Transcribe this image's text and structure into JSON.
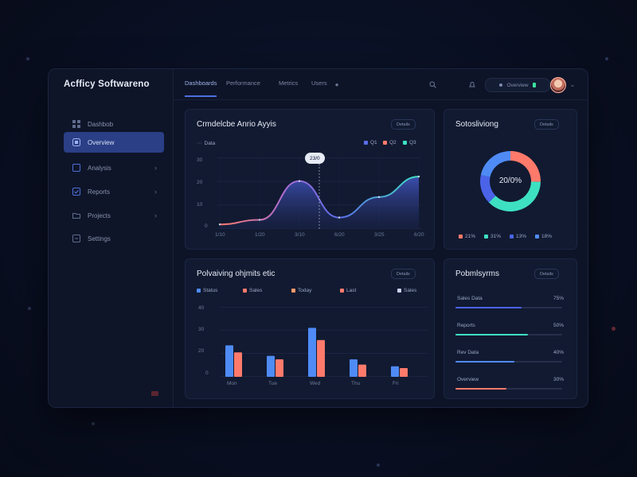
{
  "app": {
    "title": "Acfficy Softwareno"
  },
  "sidebar": {
    "items": [
      {
        "label": "Dashbob",
        "icon": "grid-icon"
      },
      {
        "label": "Overview",
        "icon": "layers-icon"
      },
      {
        "label": "Analysis",
        "icon": "chart-icon"
      },
      {
        "label": "Reports",
        "icon": "check-icon"
      },
      {
        "label": "Projects",
        "icon": "folder-icon"
      },
      {
        "label": "Settings",
        "icon": "settings-icon"
      }
    ]
  },
  "topbar": {
    "tabs": [
      "Dashboards",
      "Performance",
      "Metrics",
      "Users"
    ],
    "status_label": "Overview"
  },
  "cards": {
    "analysis": {
      "title": "Crmdelcbe Anrio Ayyis",
      "button": "Details",
      "subtitle": "Data"
    },
    "donut": {
      "title": "Sotosliviong",
      "button": "Details",
      "center": "20/0%"
    },
    "bars": {
      "title": "Polvaiving ohjmits etic",
      "button": "Details"
    },
    "progress": {
      "title": "Pobmlsyrms",
      "button": "Details"
    }
  },
  "line_chart": {
    "type": "line",
    "legend": [
      "Q1",
      "Q2",
      "Q3"
    ],
    "tooltip": "23/0",
    "x_labels": [
      "1/10",
      "1/20",
      "3/10",
      "6/20",
      "3/25",
      "6/20"
    ],
    "y_labels": [
      "30",
      "20",
      "10",
      "0"
    ]
  },
  "donut_chart": {
    "legend": [
      "21%",
      "31%",
      "13%",
      "18%"
    ],
    "colors": [
      "#ff7a6b",
      "#3ee0c2",
      "#4a63e8",
      "#4f8bf5"
    ]
  },
  "bar_chart": {
    "legend": [
      "Status",
      "Sales",
      "Today",
      "Last",
      "Sales"
    ],
    "categories": [
      "Mon",
      "Tue",
      "Wed",
      "Thu",
      "Fri"
    ],
    "y_labels": [
      "40",
      "30",
      "20",
      "0"
    ]
  },
  "progress_list": [
    {
      "label": "Sales Data",
      "value": "75%"
    },
    {
      "label": "Reports",
      "value": "50%"
    },
    {
      "label": "Rev Data",
      "value": "40%"
    },
    {
      "label": "Overview",
      "value": "30%"
    }
  ],
  "chart_data": [
    {
      "type": "area",
      "title": "",
      "x": [
        "1/10",
        "1/20",
        "3/10",
        "6/20",
        "3/25",
        "6/20"
      ],
      "y": [
        2,
        4,
        21,
        5,
        14,
        23
      ],
      "ylim": [
        0,
        30
      ]
    },
    {
      "type": "pie",
      "values": [
        21,
        31,
        13,
        18
      ],
      "labels": [
        "21%",
        "31%",
        "13%",
        "18%"
      ]
    },
    {
      "type": "bar",
      "categories": [
        "Mon",
        "Tue",
        "Wed",
        "Thu",
        "Fri"
      ],
      "series": [
        {
          "name": "Status",
          "values": [
            18,
            12,
            28,
            10,
            6
          ]
        },
        {
          "name": "Sales",
          "values": [
            14,
            10,
            21,
            7,
            5
          ]
        }
      ],
      "ylim": [
        0,
        40
      ]
    }
  ]
}
